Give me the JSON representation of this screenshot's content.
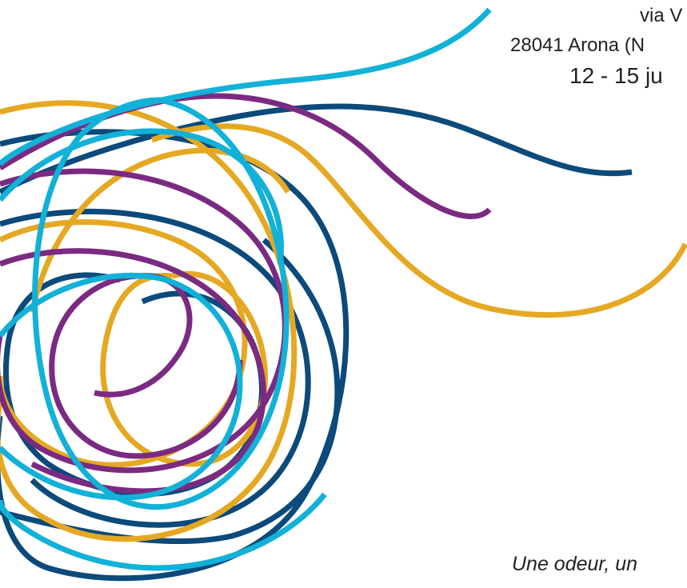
{
  "address": {
    "line1": "via V",
    "line2": "28041 Arona (N",
    "dates": "12 - 15 ju"
  },
  "tagline": "Une odeur, un ",
  "colors": {
    "navy": "#0b4a7a",
    "purple": "#7b2a82",
    "gold": "#e5a823",
    "cyan": "#12b1d8",
    "text": "#222222"
  }
}
